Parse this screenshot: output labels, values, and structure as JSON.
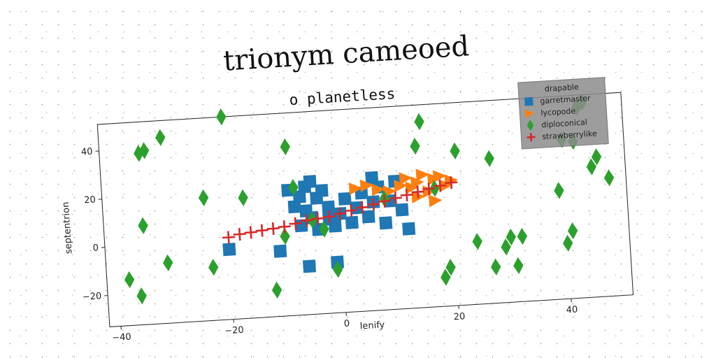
{
  "chart_data": {
    "type": "scatter",
    "title": "trionym cameoed",
    "subtitle": "o planetless",
    "xlabel": "lenify",
    "ylabel": "septentrion",
    "xlim": [
      -42,
      51
    ],
    "ylim": [
      -33,
      51
    ],
    "xticks": [
      -40,
      -20,
      0,
      20,
      40
    ],
    "yticks": [
      -20,
      0,
      20,
      40
    ],
    "grid": false,
    "legend": {
      "title": "drapable",
      "placement": "top-right"
    },
    "series": [
      {
        "name": "garretmaster",
        "marker": "square",
        "color": "#1f77b4",
        "points": [
          [
            -20,
            -4
          ],
          [
            -11,
            -6
          ],
          [
            -9,
            19
          ],
          [
            -8,
            12
          ],
          [
            -7,
            16
          ],
          [
            -7,
            4
          ],
          [
            -6,
            20
          ],
          [
            -6,
            10
          ],
          [
            -6,
            -13
          ],
          [
            -5,
            22
          ],
          [
            -5,
            7
          ],
          [
            -4,
            15
          ],
          [
            -4,
            2
          ],
          [
            -3,
            18
          ],
          [
            -2,
            11
          ],
          [
            -2,
            6
          ],
          [
            -1,
            3
          ],
          [
            -1,
            -12
          ],
          [
            0,
            8
          ],
          [
            1,
            14
          ],
          [
            2,
            4
          ],
          [
            3,
            10
          ],
          [
            4,
            16
          ],
          [
            5,
            6
          ],
          [
            6,
            22
          ],
          [
            7,
            18
          ],
          [
            8,
            3
          ],
          [
            9,
            12
          ],
          [
            10,
            20
          ],
          [
            11,
            8
          ],
          [
            12,
            0
          ],
          [
            6,
            12
          ]
        ]
      },
      {
        "name": "lycopode",
        "marker": "triangle-right",
        "color": "#ff7f0e",
        "points": [
          [
            3,
            18
          ],
          [
            5,
            19
          ],
          [
            7,
            17
          ],
          [
            9,
            16
          ],
          [
            11,
            18
          ],
          [
            12,
            21
          ],
          [
            13,
            17
          ],
          [
            14,
            19
          ],
          [
            15,
            22
          ],
          [
            16,
            15
          ],
          [
            17,
            20
          ],
          [
            18,
            21
          ],
          [
            19,
            17
          ],
          [
            20,
            19
          ],
          [
            14,
            13
          ],
          [
            17,
            11
          ]
        ]
      },
      {
        "name": "diploconical",
        "marker": "diamond",
        "color": "#2ca02c",
        "points": [
          [
            -38,
            -14
          ],
          [
            -36,
            -21
          ],
          [
            -35,
            8
          ],
          [
            -35,
            38
          ],
          [
            -34,
            39
          ],
          [
            -31,
            44
          ],
          [
            -31,
            -8
          ],
          [
            -24,
            18
          ],
          [
            -23,
            -11
          ],
          [
            -20,
            51
          ],
          [
            -17,
            17
          ],
          [
            -12,
            -22
          ],
          [
            -10,
            0
          ],
          [
            -9,
            37
          ],
          [
            -8,
            20
          ],
          [
            -5,
            6
          ],
          [
            -3,
            2
          ],
          [
            -1,
            -15
          ],
          [
            8,
            13
          ],
          [
            14,
            34
          ],
          [
            15,
            44
          ],
          [
            17,
            16
          ],
          [
            18,
            -21
          ],
          [
            19,
            -17
          ],
          [
            21,
            31
          ],
          [
            24,
            -7
          ],
          [
            27,
            -18
          ],
          [
            27,
            27
          ],
          [
            29,
            -10
          ],
          [
            30,
            -6
          ],
          [
            31,
            -18
          ],
          [
            32,
            -6
          ],
          [
            39,
            12
          ],
          [
            40,
            33
          ],
          [
            40,
            -10
          ],
          [
            41,
            -5
          ],
          [
            42,
            32
          ],
          [
            43,
            46
          ],
          [
            44,
            48
          ],
          [
            45,
            21
          ],
          [
            46,
            25
          ],
          [
            48,
            16
          ]
        ]
      },
      {
        "name": "strawberrylike",
        "marker": "plus",
        "color": "#d62728",
        "points": [
          [
            -20,
            1
          ],
          [
            -18,
            2
          ],
          [
            -16,
            2.5
          ],
          [
            -14,
            3
          ],
          [
            -12,
            3.5
          ],
          [
            -10,
            4
          ],
          [
            -8,
            5
          ],
          [
            -6,
            6
          ],
          [
            -4,
            6.5
          ],
          [
            -2,
            7
          ],
          [
            0,
            8
          ],
          [
            2,
            9
          ],
          [
            4,
            10
          ],
          [
            6,
            11
          ],
          [
            8,
            12
          ],
          [
            10,
            13
          ],
          [
            12,
            14
          ],
          [
            14,
            15
          ],
          [
            16,
            16
          ],
          [
            18,
            17
          ],
          [
            20,
            18
          ]
        ]
      }
    ]
  }
}
